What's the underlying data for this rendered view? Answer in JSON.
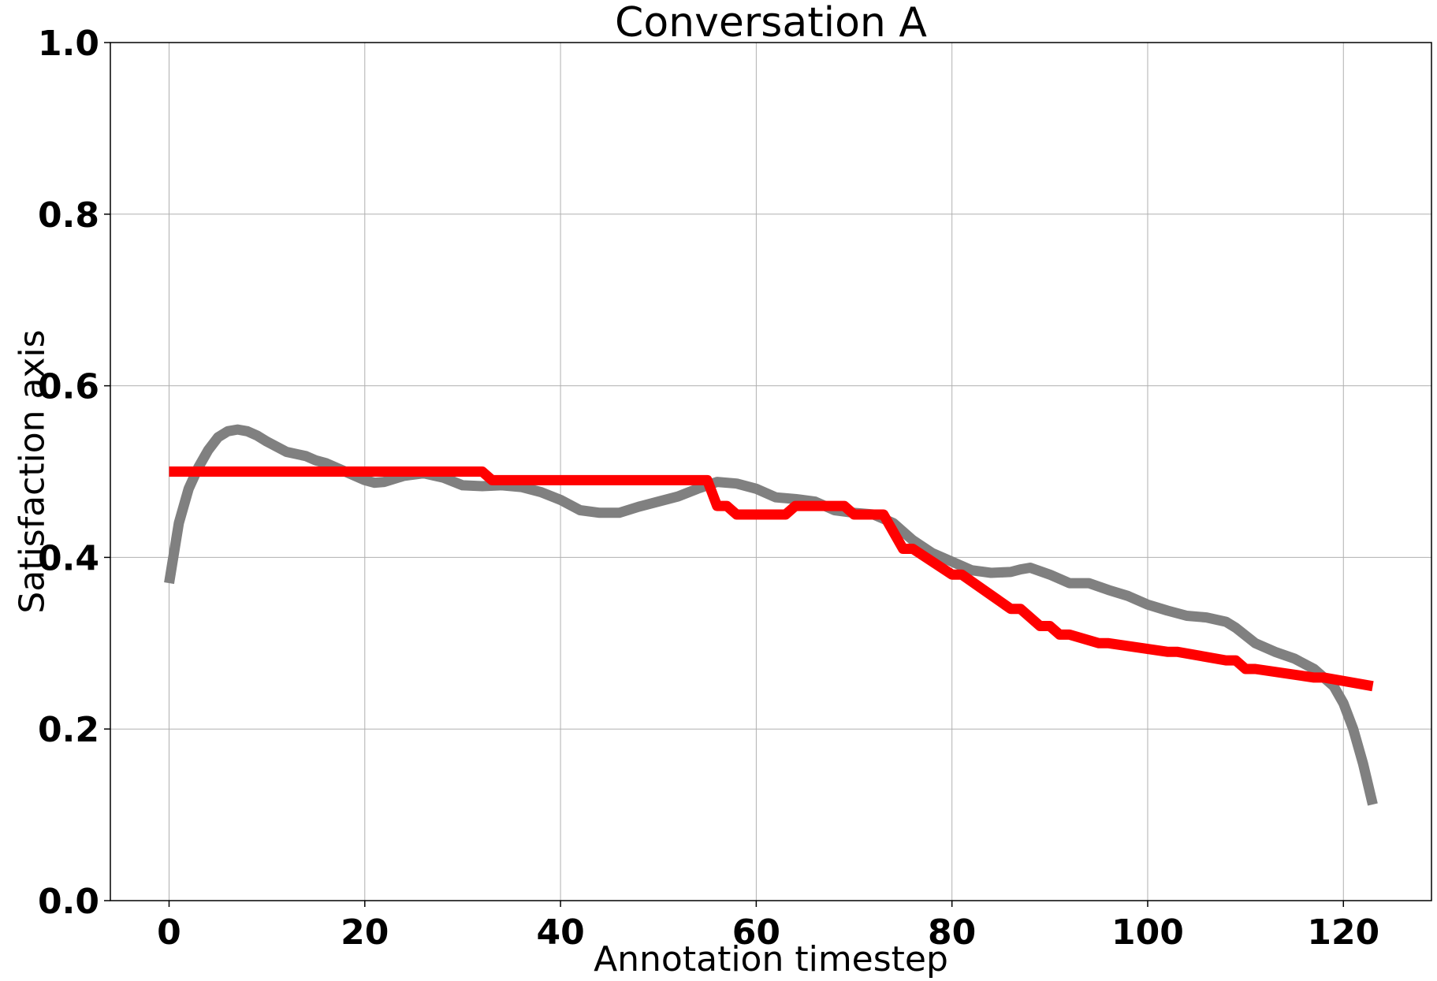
{
  "chart_data": {
    "type": "line",
    "title": "Conversation A",
    "xlabel": "Annotation timestep",
    "ylabel": "Satisfaction axis",
    "xlim": [
      -6,
      129
    ],
    "ylim": [
      0.0,
      1.0
    ],
    "xticks": [
      0,
      20,
      40,
      60,
      80,
      100,
      120
    ],
    "xtick_labels": [
      "0",
      "20",
      "40",
      "60",
      "80",
      "100",
      "120"
    ],
    "yticks": [
      0.0,
      0.2,
      0.4,
      0.6,
      0.8,
      1.0
    ],
    "ytick_labels": [
      "0.0",
      "0.2",
      "0.4",
      "0.6",
      "0.8",
      "1.0"
    ],
    "grid": true,
    "series": [
      {
        "color": "#808080",
        "x": [
          0,
          1,
          2,
          3,
          4,
          5,
          6,
          7,
          8,
          9,
          10,
          12,
          14,
          15,
          16,
          18,
          20,
          21,
          22,
          24,
          26,
          28,
          30,
          32,
          34,
          36,
          38,
          40,
          42,
          44,
          46,
          48,
          50,
          52,
          54,
          56,
          58,
          60,
          62,
          64,
          66,
          68,
          70,
          72,
          73,
          74,
          76,
          78,
          80,
          82,
          84,
          86,
          87,
          88,
          90,
          92,
          94,
          96,
          98,
          100,
          102,
          104,
          106,
          108,
          109,
          111,
          113,
          115,
          117,
          119,
          120,
          121,
          122,
          123
        ],
        "y": [
          0.37,
          0.44,
          0.48,
          0.505,
          0.525,
          0.54,
          0.547,
          0.549,
          0.547,
          0.542,
          0.535,
          0.523,
          0.518,
          0.513,
          0.51,
          0.5,
          0.49,
          0.487,
          0.488,
          0.495,
          0.498,
          0.493,
          0.484,
          0.483,
          0.484,
          0.482,
          0.476,
          0.467,
          0.455,
          0.452,
          0.452,
          0.459,
          0.465,
          0.471,
          0.48,
          0.488,
          0.486,
          0.48,
          0.47,
          0.468,
          0.465,
          0.455,
          0.452,
          0.45,
          0.445,
          0.44,
          0.42,
          0.405,
          0.395,
          0.385,
          0.382,
          0.383,
          0.386,
          0.388,
          0.38,
          0.37,
          0.37,
          0.362,
          0.355,
          0.345,
          0.338,
          0.332,
          0.33,
          0.325,
          0.318,
          0.3,
          0.29,
          0.282,
          0.27,
          0.25,
          0.23,
          0.2,
          0.16,
          0.112
        ]
      },
      {
        "color": "#ff0000",
        "x": [
          0,
          32,
          33,
          55,
          56,
          57,
          58,
          63,
          64,
          69,
          70,
          73,
          75,
          76,
          80,
          81,
          86,
          87,
          88,
          89,
          90,
          91,
          92,
          95,
          96,
          102,
          103,
          108,
          109,
          110,
          111,
          117,
          118,
          123
        ],
        "y": [
          0.5,
          0.5,
          0.49,
          0.49,
          0.46,
          0.46,
          0.45,
          0.45,
          0.46,
          0.46,
          0.45,
          0.45,
          0.41,
          0.41,
          0.38,
          0.38,
          0.34,
          0.34,
          0.33,
          0.32,
          0.32,
          0.31,
          0.31,
          0.3,
          0.3,
          0.29,
          0.29,
          0.28,
          0.28,
          0.27,
          0.27,
          0.26,
          0.26,
          0.25
        ]
      }
    ]
  }
}
